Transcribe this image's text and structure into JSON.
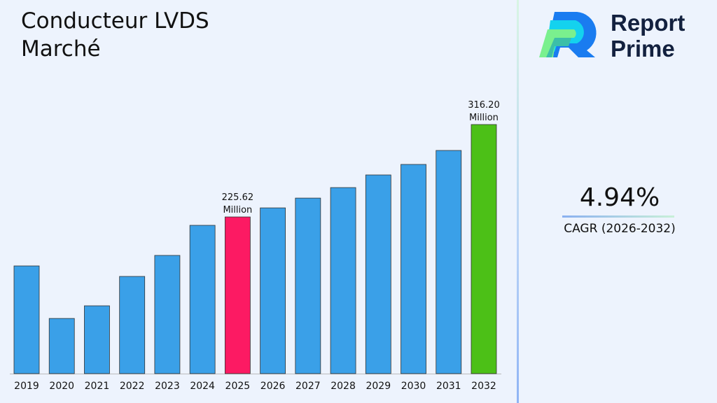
{
  "title_line1": "Conducteur LVDS",
  "title_line2": "Marché",
  "brand": {
    "line1": "Report",
    "line2": "Prime"
  },
  "cagr": {
    "value": "4.94%",
    "label": "CAGR (2026-2032)"
  },
  "chart_data": {
    "type": "bar",
    "categories": [
      "2019",
      "2020",
      "2021",
      "2022",
      "2023",
      "2024",
      "2025",
      "2026",
      "2027",
      "2028",
      "2029",
      "2030",
      "2031",
      "2032"
    ],
    "values": [
      177.6,
      126.1,
      138.5,
      167.3,
      187.9,
      217.4,
      225.62,
      234.5,
      244.1,
      254.4,
      266.8,
      277.1,
      290.8,
      316.2
    ],
    "annotations": [
      {
        "category": "2025",
        "value_text": "225.62",
        "unit_text": "Million"
      },
      {
        "category": "2032",
        "value_text": "316.20",
        "unit_text": "Million"
      }
    ],
    "colors": {
      "default": "#3aa0e8",
      "highlight_2025": "#fc1a63",
      "highlight_2032": "#4cc017"
    },
    "ylim": [
      72,
      316.2
    ],
    "grid": false,
    "title": "",
    "xlabel": "",
    "ylabel": ""
  }
}
